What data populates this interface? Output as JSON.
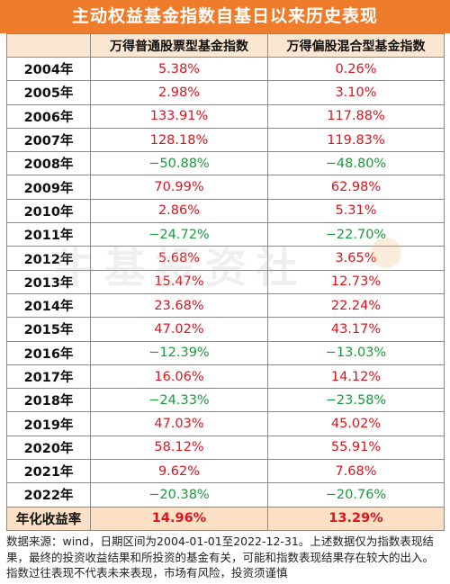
{
  "title": "主动权益基金指数自基日以来历史表现",
  "header": {
    "col0": "",
    "col1": "万得普通股票型基金指数",
    "col2": "万得偏股混合型基金指数"
  },
  "rows": [
    {
      "year": "2004年",
      "a": "5.38%",
      "b": "0.26%",
      "a_neg": false,
      "b_neg": false
    },
    {
      "year": "2005年",
      "a": "2.98%",
      "b": "3.10%",
      "a_neg": false,
      "b_neg": false
    },
    {
      "year": "2006年",
      "a": "133.91%",
      "b": "117.88%",
      "a_neg": false,
      "b_neg": false
    },
    {
      "year": "2007年",
      "a": "128.18%",
      "b": "119.83%",
      "a_neg": false,
      "b_neg": false
    },
    {
      "year": "2008年",
      "a": "−50.88%",
      "b": "−48.80%",
      "a_neg": true,
      "b_neg": true
    },
    {
      "year": "2009年",
      "a": "70.99%",
      "b": "62.98%",
      "a_neg": false,
      "b_neg": false
    },
    {
      "year": "2010年",
      "a": "2.86%",
      "b": "5.31%",
      "a_neg": false,
      "b_neg": false
    },
    {
      "year": "2011年",
      "a": "−24.72%",
      "b": "−22.70%",
      "a_neg": true,
      "b_neg": true
    },
    {
      "year": "2012年",
      "a": "5.68%",
      "b": "3.65%",
      "a_neg": false,
      "b_neg": false
    },
    {
      "year": "2013年",
      "a": "15.47%",
      "b": "12.73%",
      "a_neg": false,
      "b_neg": false
    },
    {
      "year": "2014年",
      "a": "23.68%",
      "b": "22.24%",
      "a_neg": false,
      "b_neg": false
    },
    {
      "year": "2015年",
      "a": "47.02%",
      "b": "43.17%",
      "a_neg": false,
      "b_neg": false
    },
    {
      "year": "2016年",
      "a": "−12.39%",
      "b": "−13.03%",
      "a_neg": true,
      "b_neg": true
    },
    {
      "year": "2017年",
      "a": "16.06%",
      "b": "14.12%",
      "a_neg": false,
      "b_neg": false
    },
    {
      "year": "2018年",
      "a": "−24.33%",
      "b": "−23.58%",
      "a_neg": true,
      "b_neg": true
    },
    {
      "year": "2019年",
      "a": "47.03%",
      "b": "45.02%",
      "a_neg": false,
      "b_neg": false
    },
    {
      "year": "2020年",
      "a": "58.12%",
      "b": "55.91%",
      "a_neg": false,
      "b_neg": false
    },
    {
      "year": "2021年",
      "a": "9.62%",
      "b": "7.68%",
      "a_neg": false,
      "b_neg": false
    },
    {
      "year": "2022年",
      "a": "−20.38%",
      "b": "−20.76%",
      "a_neg": true,
      "b_neg": true
    }
  ],
  "total": {
    "label": "年化收益率",
    "a": "14.96%",
    "b": "13.29%"
  },
  "watermark": "牛基投资社",
  "note": "数据来源：wind，日期区间为2004-01-01至2022-12-31。上述数据仅为指数表现结果，最终的投资收益结果和所投资的基金有关，可能和指数表现结果存在较大的出入。指数过往表现不代表未来表现，市场有风险，投资须谨慎",
  "colors": {
    "title_bg": "#ee7c2a",
    "header_bg": "#fbe6d1",
    "positive": "#e2121b",
    "negative": "#1a9b3a"
  }
}
